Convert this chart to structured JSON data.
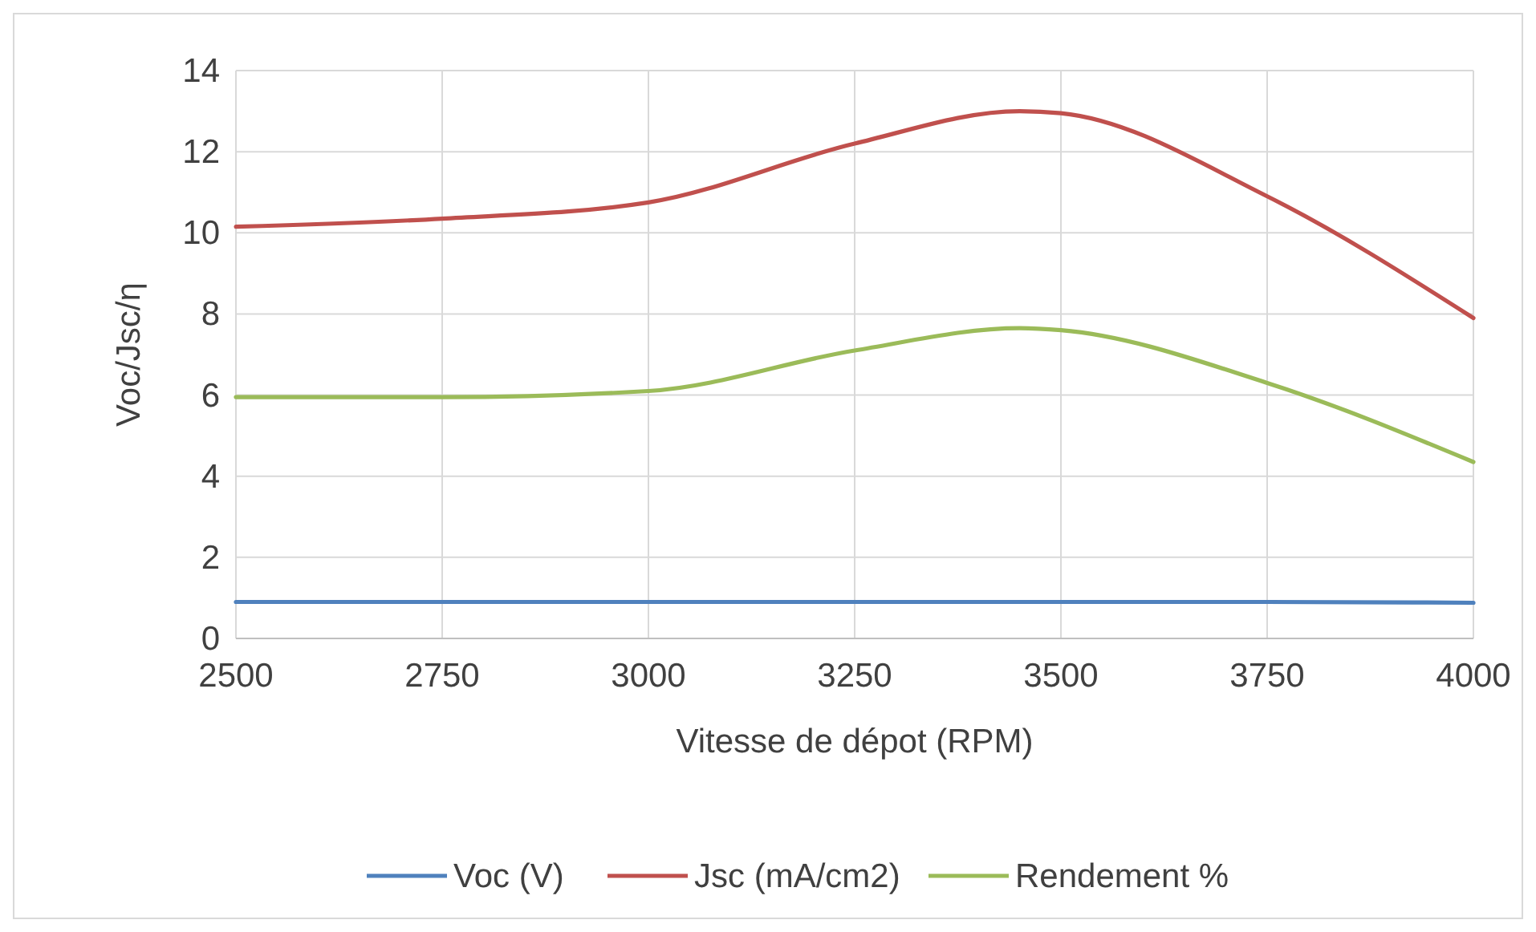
{
  "chart_data": {
    "type": "line",
    "xlabel": "Vitesse de dépot (RPM)",
    "ylabel": "Voc/Jsc/η",
    "x": [
      2500,
      2750,
      3000,
      3250,
      3450,
      3500,
      3750,
      4000
    ],
    "series": [
      {
        "name": "Voc (V)",
        "color": "#4f81bd",
        "values": [
          0.9,
          0.9,
          0.9,
          0.9,
          0.9,
          0.9,
          0.9,
          0.88
        ]
      },
      {
        "name": "Jsc (mA/cm2)",
        "color": "#c0504d",
        "values": [
          10.15,
          10.35,
          10.75,
          12.2,
          13.0,
          12.95,
          10.9,
          7.9
        ]
      },
      {
        "name": "Rendement %",
        "color": "#9bbb59",
        "values": [
          5.95,
          5.95,
          6.1,
          7.1,
          7.65,
          7.6,
          6.3,
          4.35
        ]
      }
    ],
    "xlim": [
      2500,
      4000
    ],
    "xticks": [
      2500,
      2750,
      3000,
      3250,
      3500,
      3750,
      4000
    ],
    "ylim": [
      0,
      14
    ],
    "yticks": [
      0,
      2,
      4,
      6,
      8,
      10,
      12,
      14
    ],
    "grid": true,
    "legend": "bottom",
    "marker": "none",
    "line_style": "solid"
  }
}
